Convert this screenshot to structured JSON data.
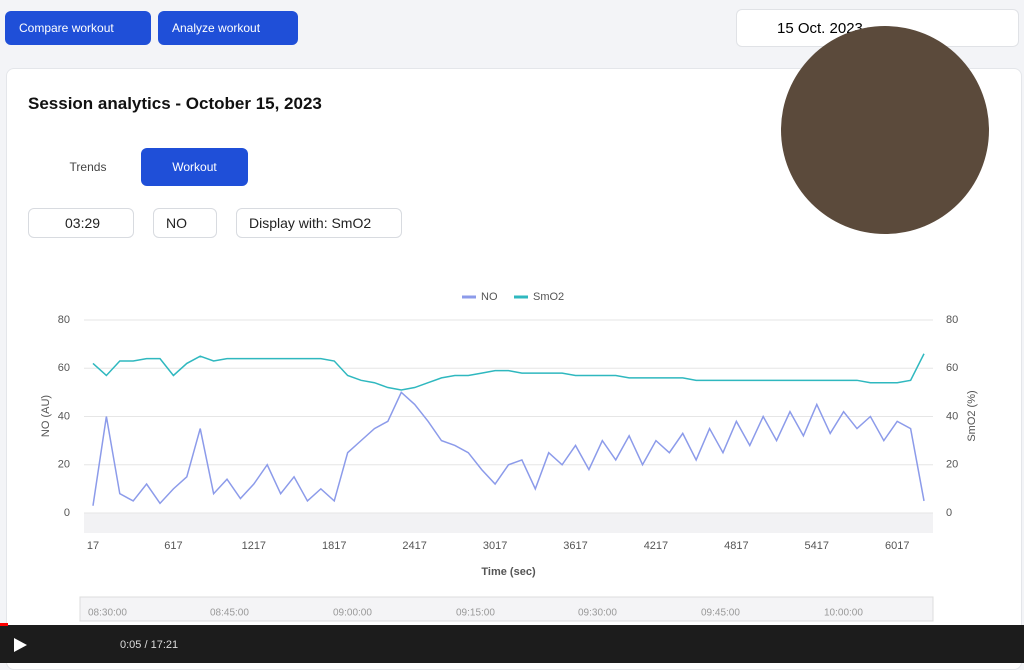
{
  "toolbar": {
    "compare": "Compare workout",
    "analyze": "Analyze workout",
    "date": "15 Oct. 2023"
  },
  "card": {
    "title": "Session analytics - October 15, 2023",
    "tabs": [
      "Trends",
      "Workout"
    ],
    "filters": [
      "03:29",
      "NO",
      "Display with: SmO2"
    ]
  },
  "chart_data": {
    "type": "line",
    "xlabel": "Time (sec)",
    "ylabel": "NO (AU)",
    "y2label": "SmO2 (%)",
    "grid": true,
    "legend": "top",
    "x": [
      17,
      117,
      217,
      317,
      417,
      517,
      617,
      717,
      817,
      917,
      1017,
      1117,
      1217,
      1317,
      1417,
      1517,
      1617,
      1717,
      1817,
      1917,
      2017,
      2117,
      2217,
      2317,
      2417,
      2517,
      2617,
      2717,
      2817,
      2917,
      3017,
      3117,
      3217,
      3317,
      3417,
      3517,
      3617,
      3717,
      3817,
      3917,
      4017,
      4117,
      4217,
      4317,
      4417,
      4517,
      4617,
      4717,
      4817,
      4917,
      5017,
      5117,
      5217,
      5317,
      5417,
      5517,
      5617,
      5717,
      5817,
      5917,
      6017,
      6117,
      6217
    ],
    "series": [
      {
        "name": "NO",
        "color": "#8c9bea",
        "values": [
          3,
          40,
          8,
          5,
          12,
          4,
          10,
          15,
          35,
          8,
          14,
          6,
          12,
          20,
          8,
          15,
          5,
          10,
          5,
          25,
          30,
          35,
          38,
          50,
          45,
          38,
          30,
          28,
          25,
          18,
          12,
          20,
          22,
          10,
          25,
          20,
          28,
          18,
          30,
          22,
          32,
          20,
          30,
          25,
          33,
          22,
          35,
          25,
          38,
          28,
          40,
          30,
          42,
          32,
          45,
          33,
          42,
          35,
          40,
          30,
          38,
          35,
          5
        ]
      },
      {
        "name": "SmO2",
        "color": "#2fb8bf",
        "axis": "y2",
        "values": [
          62,
          57,
          63,
          63,
          64,
          64,
          57,
          62,
          65,
          63,
          64,
          64,
          64,
          64,
          64,
          64,
          64,
          64,
          63,
          57,
          55,
          54,
          52,
          51,
          52,
          54,
          56,
          57,
          57,
          58,
          59,
          59,
          58,
          58,
          58,
          58,
          57,
          57,
          57,
          57,
          56,
          56,
          56,
          56,
          56,
          55,
          55,
          55,
          55,
          55,
          55,
          55,
          55,
          55,
          55,
          55,
          55,
          55,
          54,
          54,
          54,
          55,
          66
        ]
      }
    ],
    "xlim": [
      -50,
      6284
    ],
    "xticks": [
      17,
      617,
      1217,
      1817,
      2417,
      3017,
      3617,
      4217,
      4817,
      5417,
      6017
    ],
    "ylim": [
      0,
      80
    ],
    "yticks": [
      0,
      20,
      40,
      60,
      80
    ],
    "y2lim": [
      0,
      80
    ],
    "y2ticks": [
      0,
      20,
      40,
      60,
      80
    ]
  },
  "timeline": {
    "labels": [
      "08:30:00",
      "08:45:00",
      "09:00:00",
      "09:15:00",
      "09:30:00",
      "09:45:00",
      "10:00:00"
    ]
  },
  "player": {
    "time": "0:05 / 17:21"
  }
}
